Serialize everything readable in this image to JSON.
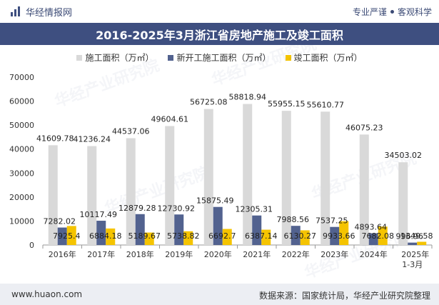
{
  "header": {
    "brand_name": "华经情报网",
    "slogan_left": "专业严谨",
    "slogan_right": "客观科学"
  },
  "title": "2016-2025年3月浙江省房地产施工及竣工面积",
  "watermark": "华经产业研究院",
  "footer": {
    "website": "www.huaon.com",
    "source": "数据来源：国家统计局，华经产业研究院整理"
  },
  "colors": {
    "series1": "#d9d9d9",
    "series2": "#52628f",
    "series3": "#f5c400",
    "title_bg": "#3e4f80"
  },
  "chart_data": {
    "type": "bar",
    "categories": [
      "2016年",
      "2017年",
      "2018年",
      "2019年",
      "2020年",
      "2021年",
      "2022年",
      "2023年",
      "2024年",
      "2025年\n1-3月"
    ],
    "series": [
      {
        "name": "施工面积（万㎡）",
        "values": [
          41609.78,
          41236.24,
          44537.06,
          49604.61,
          56725.08,
          58818.94,
          55955.15,
          55610.77,
          46075.23,
          34503.02
        ]
      },
      {
        "name": "新开工施工面积（万㎡）",
        "values": [
          7282.02,
          10117.49,
          12879.28,
          12730.92,
          15875.49,
          12305.31,
          7988.56,
          7537.25,
          4893.64,
          996.96
        ]
      },
      {
        "name": "竣工面积（万㎡）",
        "values": [
          7925.4,
          6884.18,
          5189.67,
          5738.82,
          6692.7,
          6387.14,
          6130.27,
          9933.66,
          7682.08,
          1349.58
        ]
      }
    ],
    "value_labels": [
      [
        "41609.78",
        "41236.24",
        "44537.06",
        "49604.61",
        "56725.08",
        "58818.94",
        "55955.15",
        "55610.77",
        "46075.23",
        "34503.02"
      ],
      [
        "7282.02",
        "10117.49",
        "12879.28",
        "12730.92",
        "15875.49",
        "12305.31",
        "7988.56",
        "7537.25",
        "4893.64",
        "996.96"
      ],
      [
        "7925.4",
        "6884.18",
        "5189.67",
        "5738.82",
        "6692.7",
        "6387.14",
        "6130.27",
        "9933.66",
        "7682.08",
        "1349.58"
      ]
    ],
    "yticks": [
      "0",
      "10000",
      "20000",
      "30000",
      "40000",
      "50000",
      "60000",
      "70000"
    ],
    "ylim": [
      0,
      70000
    ],
    "grid": false,
    "legend_position": "top"
  }
}
